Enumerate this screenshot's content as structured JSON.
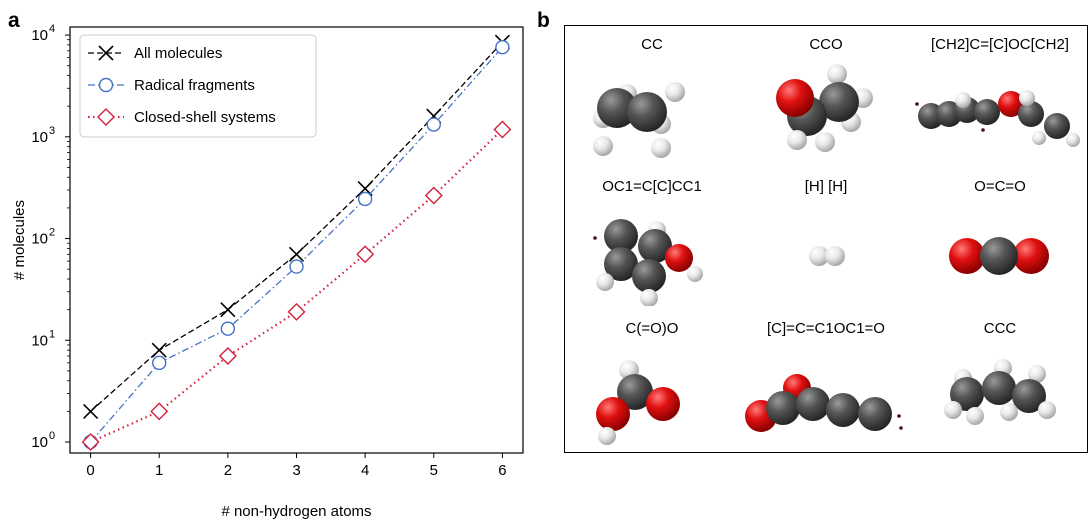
{
  "panel_a": {
    "label": "a",
    "chart_data": {
      "type": "line",
      "yscale": "log",
      "xlabel": "# non-hydrogen atoms",
      "ylabel": "# molecules",
      "x": [
        0,
        1,
        2,
        3,
        4,
        5,
        6
      ],
      "xticks": [
        "0",
        "1",
        "2",
        "3",
        "4",
        "5",
        "6"
      ],
      "yticks": [
        {
          "base": "10",
          "exp": "0"
        },
        {
          "base": "10",
          "exp": "1"
        },
        {
          "base": "10",
          "exp": "2"
        },
        {
          "base": "10",
          "exp": "3"
        },
        {
          "base": "10",
          "exp": "4"
        }
      ],
      "xlim": [
        -0.3,
        6.3
      ],
      "ylim": [
        0.78,
        12000
      ],
      "legend_position": "top-left",
      "series": [
        {
          "name": "All molecules",
          "values": [
            2,
            8,
            20,
            70,
            310,
            1600,
            8500
          ],
          "color": "#000000",
          "marker": "x",
          "line": "dashed"
        },
        {
          "name": "Radical fragments",
          "values": [
            1,
            6,
            13,
            53,
            245,
            1320,
            7600
          ],
          "color": "#4472c4",
          "marker": "circle",
          "line": "dashdot"
        },
        {
          "name": "Closed-shell systems",
          "values": [
            1,
            2,
            7,
            19,
            70,
            265,
            1180
          ],
          "color": "#d2213d",
          "marker": "diamond",
          "line": "dotted"
        }
      ]
    }
  },
  "panel_b": {
    "label": "b",
    "molecules": [
      {
        "smiles": "CC",
        "icon": "ethane-molecule-icon"
      },
      {
        "smiles": "CCO",
        "icon": "ethanol-molecule-icon"
      },
      {
        "smiles": "[CH2]C=[C]OC[CH2]",
        "icon": "radical-chain-molecule-icon"
      },
      {
        "smiles": "OC1=C[C]CC1",
        "icon": "ring-molecule-icon"
      },
      {
        "smiles": "[H] [H]",
        "icon": "hydrogen-molecule-icon"
      },
      {
        "smiles": "O=C=O",
        "icon": "carbon-dioxide-molecule-icon"
      },
      {
        "smiles": "C(=O)O",
        "icon": "formic-acid-molecule-icon"
      },
      {
        "smiles": "[C]=C=C1OC1=O",
        "icon": "cumulene-molecule-icon"
      },
      {
        "smiles": "CCC",
        "icon": "propane-molecule-icon"
      }
    ],
    "atom_colors": {
      "C": "#555555",
      "O": "#e01010",
      "H": "#e8e8e8",
      "radical": "#4a1010"
    }
  }
}
